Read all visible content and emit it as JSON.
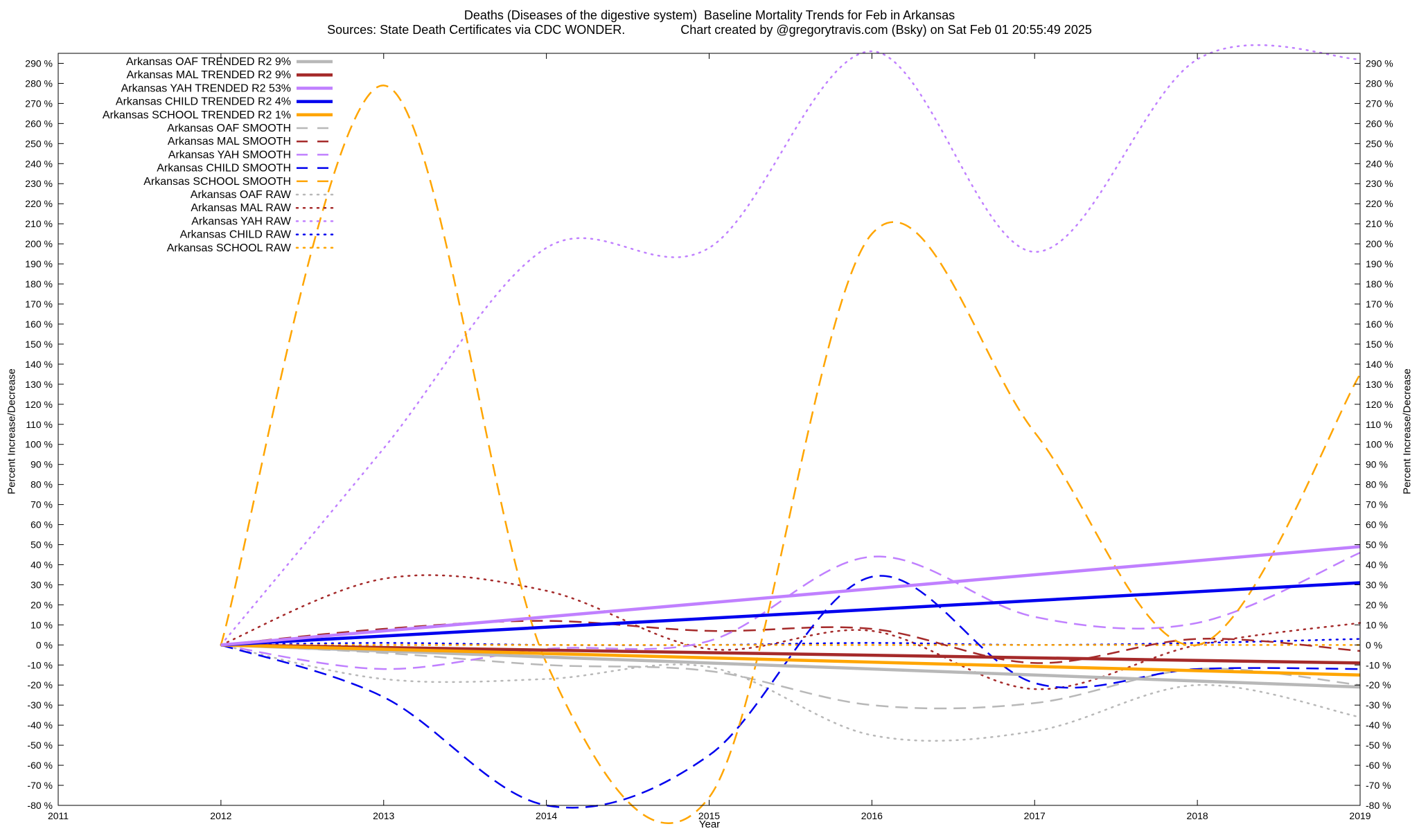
{
  "title_line1": "Deaths (Diseases of the digestive system)  Baseline Mortality Trends for Feb in Arkansas",
  "title_line2": "Sources: State Death Certificates via CDC WONDER.                Chart created by @gregorytravis.com (Bsky) on Sat Feb 01 20:55:49 2025",
  "chart_data": {
    "type": "line",
    "xlabel": "Year",
    "ylabel": "Percent Increase/Decrease",
    "xlim": [
      2011,
      2019
    ],
    "ylim": [
      -80,
      295
    ],
    "x_ticks": [
      2011,
      2012,
      2013,
      2014,
      2015,
      2016,
      2017,
      2018,
      2019
    ],
    "y_ticks": [
      -80,
      -70,
      -60,
      -50,
      -40,
      -30,
      -20,
      -10,
      0,
      10,
      20,
      30,
      40,
      50,
      60,
      70,
      80,
      90,
      100,
      110,
      120,
      130,
      140,
      150,
      160,
      170,
      180,
      190,
      200,
      210,
      220,
      230,
      240,
      250,
      260,
      270,
      280,
      290
    ],
    "y_tick_suffix": " %",
    "legend_position": "top-left",
    "grid": false,
    "series": [
      {
        "name": "Arkansas OAF TRENDED R2  9%",
        "style": "trend",
        "color": "#b8b8b8",
        "x": [
          2012,
          2019
        ],
        "y": [
          0,
          -21
        ]
      },
      {
        "name": "Arkansas MAL TRENDED R2  9%",
        "style": "trend",
        "color": "#a52a2a",
        "x": [
          2012,
          2019
        ],
        "y": [
          0,
          -9
        ]
      },
      {
        "name": "Arkansas YAH TRENDED R2  53%",
        "style": "trend",
        "color": "#c080ff",
        "x": [
          2012,
          2019
        ],
        "y": [
          0,
          49
        ]
      },
      {
        "name": "Arkansas CHILD TRENDED R2  4%",
        "style": "trend",
        "color": "#0000ee",
        "x": [
          2012,
          2019
        ],
        "y": [
          0,
          31
        ]
      },
      {
        "name": "Arkansas SCHOOL TRENDED R2  1%",
        "style": "trend",
        "color": "#ffa500",
        "x": [
          2012,
          2019
        ],
        "y": [
          0,
          -15
        ]
      },
      {
        "name": "Arkansas OAF SMOOTH",
        "style": "smooth",
        "color": "#b8b8b8",
        "x": [
          2012,
          2013,
          2014,
          2015,
          2016,
          2017,
          2018,
          2019
        ],
        "y": [
          0,
          -4,
          -10,
          -13,
          -30,
          -29,
          -12,
          -20
        ]
      },
      {
        "name": "Arkansas MAL SMOOTH",
        "style": "smooth",
        "color": "#a52a2a",
        "x": [
          2012,
          2013,
          2014,
          2015,
          2016,
          2017,
          2018,
          2019
        ],
        "y": [
          0,
          8,
          12,
          7,
          8,
          -9,
          3,
          -3
        ]
      },
      {
        "name": "Arkansas YAH SMOOTH",
        "style": "smooth",
        "color": "#c080ff",
        "x": [
          2012,
          2013,
          2014,
          2015,
          2016,
          2017,
          2018,
          2019
        ],
        "y": [
          0,
          -12,
          -2,
          2,
          44,
          14,
          11,
          46
        ]
      },
      {
        "name": "Arkansas CHILD SMOOTH",
        "style": "smooth",
        "color": "#0000ee",
        "x": [
          2012,
          2013,
          2014,
          2015,
          2016,
          2017,
          2018,
          2019
        ],
        "y": [
          0,
          -26,
          -80,
          -55,
          34,
          -19,
          -12,
          -12
        ]
      },
      {
        "name": "Arkansas SCHOOL SMOOTH",
        "style": "smooth",
        "color": "#ffa500",
        "x": [
          2012,
          2013,
          2014,
          2015,
          2016,
          2017,
          2018,
          2019
        ],
        "y": [
          0,
          279,
          -9,
          -76,
          205,
          106,
          0,
          135
        ]
      },
      {
        "name": "Arkansas OAF RAW",
        "style": "raw",
        "color": "#b8b8b8",
        "x": [
          2012,
          2013,
          2014,
          2015,
          2016,
          2017,
          2018,
          2019
        ],
        "y": [
          0,
          -17,
          -17,
          -11,
          -45,
          -43,
          -20,
          -36
        ]
      },
      {
        "name": "Arkansas MAL RAW",
        "style": "raw",
        "color": "#a52a2a",
        "x": [
          2012,
          2013,
          2014,
          2015,
          2016,
          2017,
          2018,
          2019
        ],
        "y": [
          0,
          33,
          27,
          -2,
          7,
          -22,
          0,
          11
        ]
      },
      {
        "name": "Arkansas YAH RAW",
        "style": "raw",
        "color": "#c080ff",
        "x": [
          2012,
          2013,
          2014,
          2015,
          2016,
          2017,
          2018,
          2019
        ],
        "y": [
          0,
          98,
          198,
          198,
          296,
          196,
          292,
          292
        ]
      },
      {
        "name": "Arkansas CHILD RAW",
        "style": "raw",
        "color": "#0000ee",
        "x": [
          2012,
          2013,
          2014,
          2015,
          2016,
          2017,
          2018,
          2019
        ],
        "y": [
          0,
          1,
          0,
          0,
          1,
          0,
          1,
          3
        ]
      },
      {
        "name": "Arkansas SCHOOL RAW",
        "style": "raw",
        "color": "#ffa500",
        "x": [
          2012,
          2013,
          2014,
          2015,
          2016,
          2017,
          2018,
          2019
        ],
        "y": [
          0,
          0,
          0,
          0,
          0,
          0,
          0,
          0
        ]
      }
    ]
  }
}
